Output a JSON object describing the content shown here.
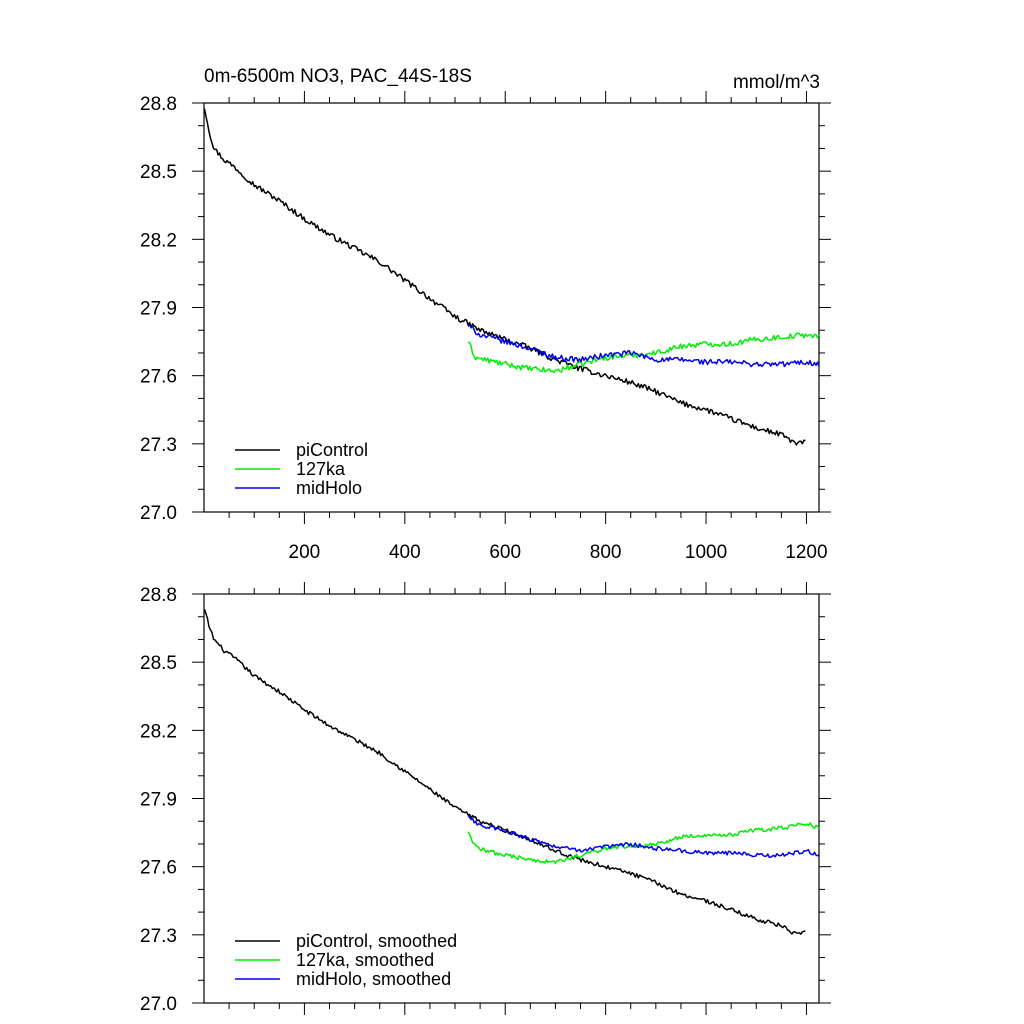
{
  "title": "0m-6500m NO3, PAC_44S-18S",
  "units": "mmol/m^3",
  "colors": {
    "piControl": "#000000",
    "127ka": "#00ee00",
    "midHolo": "#0000ee"
  },
  "chart_data": [
    {
      "type": "line",
      "xlim": [
        0,
        1225
      ],
      "ylim": [
        27.0,
        28.8
      ],
      "xticks": [
        200,
        400,
        600,
        800,
        1000,
        1200
      ],
      "xtick_labels": [
        "200",
        "400",
        "600",
        "800",
        "1000",
        "1200"
      ],
      "yticks": [
        27.0,
        27.3,
        27.6,
        27.9,
        28.2,
        28.5,
        28.8
      ],
      "ytick_labels": [
        "27.0",
        "27.3",
        "27.6",
        "27.9",
        "28.2",
        "28.5",
        "28.8"
      ],
      "legend_position": "bottom-left",
      "series": [
        {
          "name": "piControl",
          "key": "piControl",
          "x": [
            1,
            5,
            10,
            20,
            40,
            60,
            80,
            100,
            150,
            200,
            250,
            300,
            350,
            400,
            450,
            500,
            550,
            600,
            650,
            700,
            750,
            800,
            850,
            900,
            950,
            1000,
            1050,
            1100,
            1150,
            1180,
            1200
          ],
          "y": [
            28.78,
            28.74,
            28.68,
            28.6,
            28.55,
            28.52,
            28.48,
            28.44,
            28.37,
            28.29,
            28.22,
            28.16,
            28.1,
            28.02,
            27.94,
            27.86,
            27.8,
            27.76,
            27.72,
            27.67,
            27.63,
            27.6,
            27.57,
            27.53,
            27.48,
            27.45,
            27.41,
            27.37,
            27.34,
            27.3,
            27.31
          ]
        },
        {
          "name": "127ka",
          "key": "127ka",
          "x": [
            526,
            540,
            560,
            600,
            650,
            700,
            750,
            800,
            850,
            900,
            950,
            1000,
            1050,
            1100,
            1150,
            1200,
            1225
          ],
          "y": [
            27.75,
            27.68,
            27.67,
            27.65,
            27.63,
            27.62,
            27.65,
            27.68,
            27.69,
            27.7,
            27.73,
            27.74,
            27.74,
            27.76,
            27.77,
            27.78,
            27.77
          ]
        },
        {
          "name": "midHolo",
          "key": "midHolo",
          "x": [
            526,
            550,
            600,
            650,
            700,
            750,
            800,
            850,
            900,
            950,
            1000,
            1050,
            1100,
            1150,
            1200,
            1225
          ],
          "y": [
            27.82,
            27.78,
            27.75,
            27.72,
            27.68,
            27.67,
            27.69,
            27.7,
            27.67,
            27.67,
            27.66,
            27.66,
            27.65,
            27.65,
            27.66,
            27.65
          ]
        }
      ]
    },
    {
      "type": "line",
      "xlim": [
        0,
        1225
      ],
      "ylim": [
        27.0,
        28.8
      ],
      "yticks": [
        27.0,
        27.3,
        27.6,
        27.9,
        28.2,
        28.5,
        28.8
      ],
      "ytick_labels": [
        "27.0",
        "27.3",
        "27.6",
        "27.9",
        "28.2",
        "28.5",
        "28.8"
      ],
      "legend_position": "bottom-left",
      "series": [
        {
          "name": "piControl, smoothed",
          "key": "piControl",
          "x": [
            1,
            5,
            10,
            20,
            40,
            60,
            80,
            100,
            150,
            200,
            250,
            300,
            350,
            400,
            450,
            500,
            550,
            600,
            650,
            700,
            750,
            800,
            850,
            900,
            950,
            1000,
            1050,
            1100,
            1150,
            1180,
            1200
          ],
          "y": [
            28.73,
            28.7,
            28.66,
            28.6,
            28.55,
            28.52,
            28.48,
            28.44,
            28.37,
            28.29,
            28.22,
            28.16,
            28.1,
            28.02,
            27.94,
            27.86,
            27.8,
            27.76,
            27.72,
            27.67,
            27.63,
            27.6,
            27.57,
            27.53,
            27.48,
            27.45,
            27.41,
            27.37,
            27.34,
            27.3,
            27.31
          ]
        },
        {
          "name": "127ka, smoothed",
          "key": "127ka",
          "x": [
            526,
            540,
            560,
            600,
            650,
            700,
            750,
            800,
            850,
            900,
            950,
            1000,
            1050,
            1100,
            1150,
            1200,
            1225
          ],
          "y": [
            27.75,
            27.69,
            27.67,
            27.65,
            27.63,
            27.62,
            27.65,
            27.68,
            27.69,
            27.7,
            27.73,
            27.74,
            27.74,
            27.76,
            27.77,
            27.79,
            27.77
          ]
        },
        {
          "name": "midHolo, smoothed",
          "key": "midHolo",
          "x": [
            526,
            550,
            600,
            650,
            700,
            750,
            800,
            850,
            900,
            950,
            1000,
            1050,
            1100,
            1150,
            1200,
            1225
          ],
          "y": [
            27.82,
            27.78,
            27.76,
            27.72,
            27.69,
            27.67,
            27.69,
            27.7,
            27.68,
            27.67,
            27.66,
            27.66,
            27.65,
            27.65,
            27.67,
            27.65
          ]
        }
      ]
    }
  ]
}
